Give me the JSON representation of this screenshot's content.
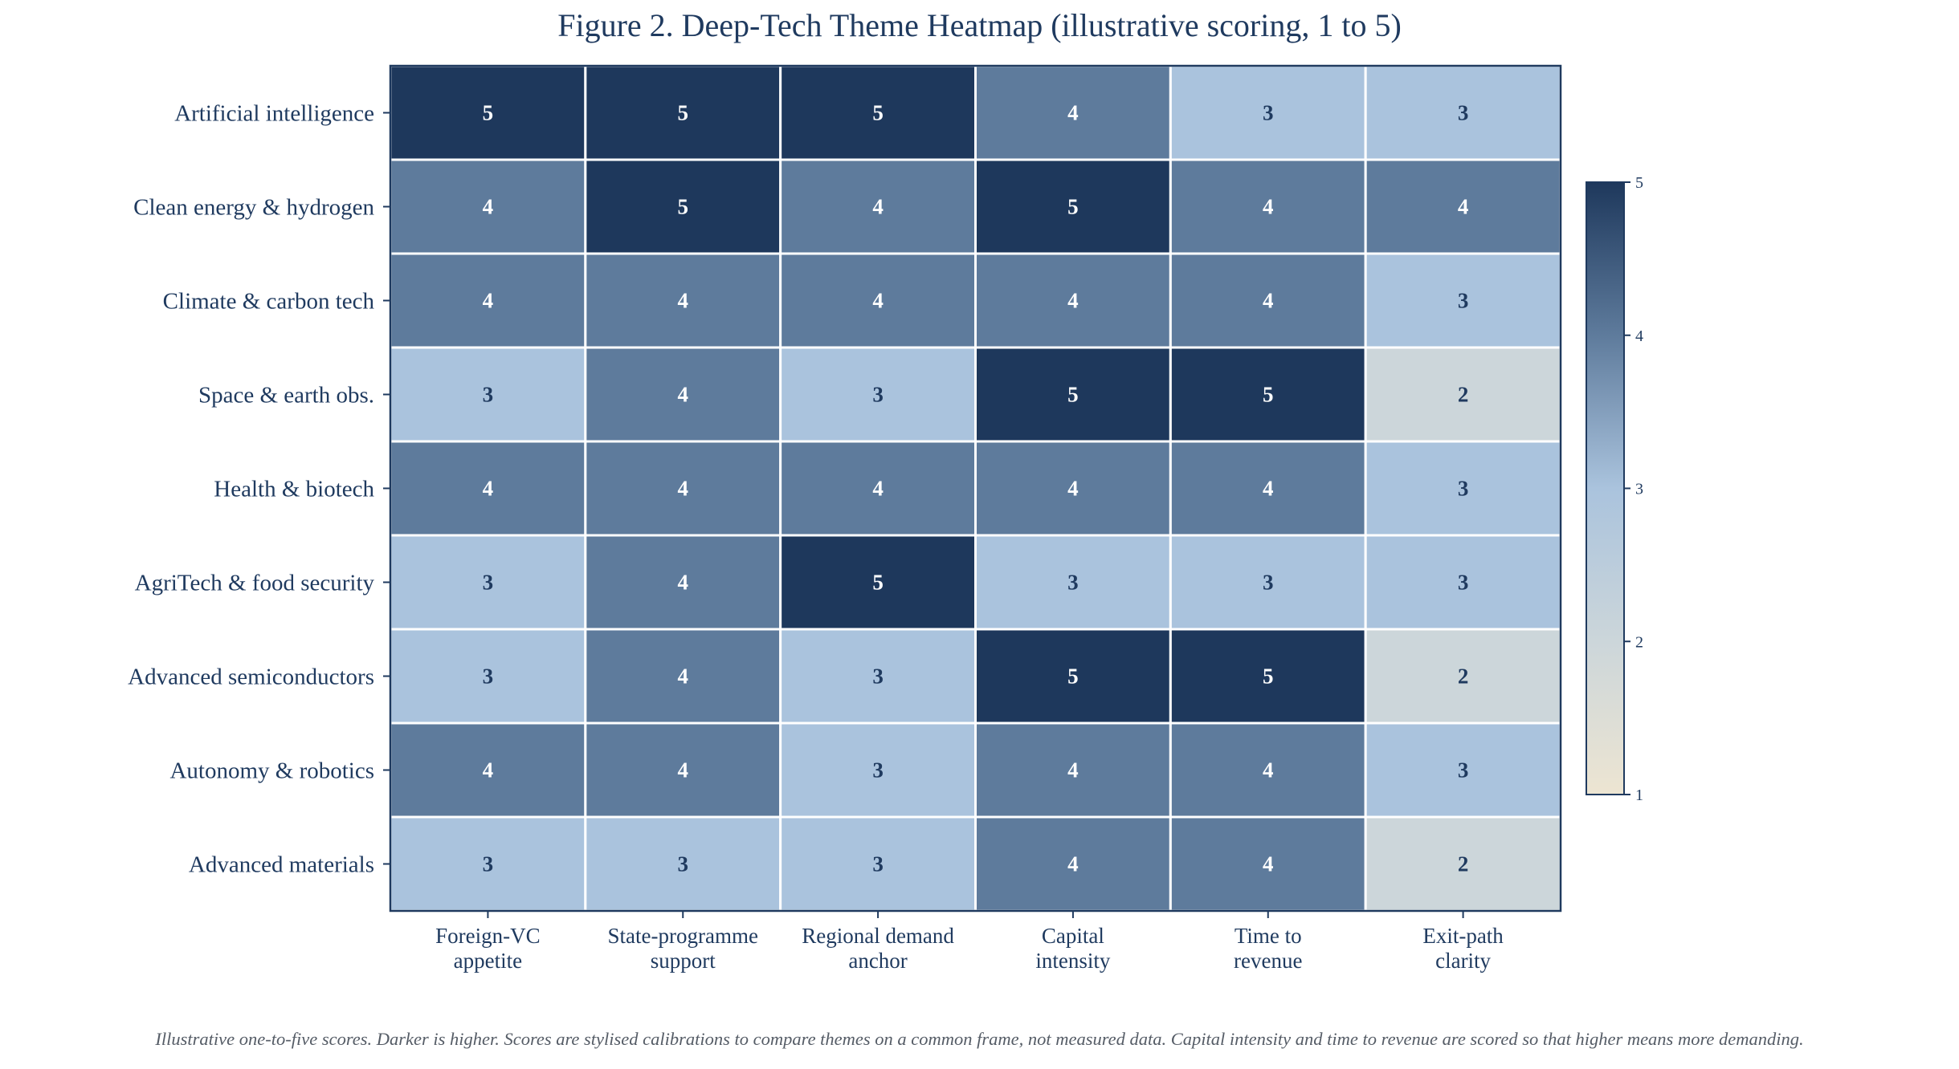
{
  "chart_data": {
    "type": "heatmap",
    "title": "Figure 2. Deep-Tech Theme Heatmap (illustrative scoring, 1 to 5)",
    "caption": "Illustrative one-to-five scores. Darker is higher. Scores are stylised calibrations to compare themes on a common frame, not measured data. Capital intensity and time to revenue are scored so that higher means more demanding.",
    "rows": [
      "Artificial intelligence",
      "Clean energy & hydrogen",
      "Climate & carbon tech",
      "Space & earth obs.",
      "Health & biotech",
      "AgriTech & food security",
      "Advanced semiconductors",
      "Autonomy & robotics",
      "Advanced materials"
    ],
    "columns": [
      [
        "Foreign-VC",
        "appetite"
      ],
      [
        "State-programme",
        "support"
      ],
      [
        "Regional demand",
        "anchor"
      ],
      [
        "Capital",
        "intensity"
      ],
      [
        "Time to",
        "revenue"
      ],
      [
        "Exit-path",
        "clarity"
      ]
    ],
    "values": [
      [
        5,
        5,
        5,
        4,
        3,
        3
      ],
      [
        4,
        5,
        4,
        5,
        4,
        4
      ],
      [
        4,
        4,
        4,
        4,
        4,
        3
      ],
      [
        3,
        4,
        3,
        5,
        5,
        2
      ],
      [
        4,
        4,
        4,
        4,
        4,
        3
      ],
      [
        3,
        4,
        5,
        3,
        3,
        3
      ],
      [
        3,
        4,
        3,
        5,
        5,
        2
      ],
      [
        4,
        4,
        3,
        4,
        4,
        3
      ],
      [
        3,
        3,
        3,
        4,
        4,
        2
      ]
    ],
    "value_range": [
      1,
      5
    ],
    "colorbar_ticks": [
      "1",
      "2",
      "3",
      "4",
      "5"
    ],
    "colors": {
      "1": "#ede5d2",
      "2": "#ccd6da",
      "3": "#aac3dd",
      "4": "#5e7b9c",
      "5": "#1e385c"
    },
    "text_colors": {
      "dark": "#ffffff",
      "light": "#1f3a5f"
    },
    "legend_placement": "right (colorbar)",
    "grid": false
  }
}
